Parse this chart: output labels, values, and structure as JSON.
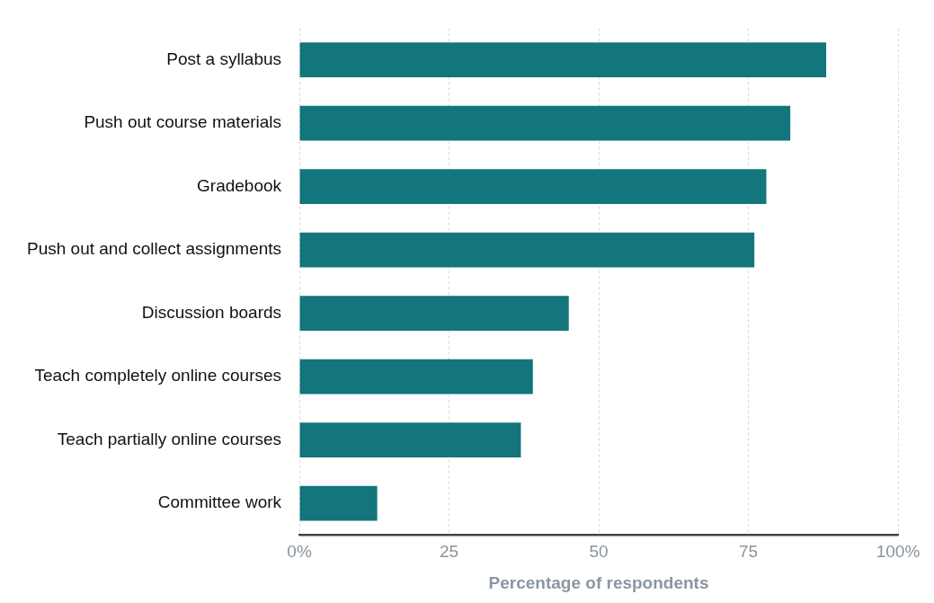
{
  "chart_data": {
    "type": "bar",
    "orientation": "horizontal",
    "xlabel": "Percentage of respondents",
    "categories": [
      "Post a syllabus",
      "Push out course materials",
      "Gradebook",
      "Push out and collect assignments",
      "Discussion boards",
      "Teach completely online courses",
      "Teach partially online courses",
      "Committee work"
    ],
    "values": [
      88,
      82,
      78,
      76,
      45,
      39,
      37,
      13
    ],
    "color": "#12767c",
    "xlim": [
      0,
      100
    ],
    "xticks": [
      {
        "value": 0,
        "label": "0%"
      },
      25,
      50,
      75,
      {
        "value": 100,
        "label": "100%"
      }
    ],
    "grid": "x",
    "legend": false
  }
}
